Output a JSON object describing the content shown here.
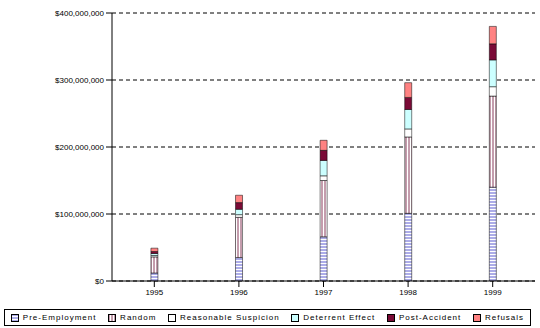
{
  "chart_data": {
    "type": "bar",
    "stacked": true,
    "grid": true,
    "legend": "bottom",
    "categories": [
      "1995",
      "1996",
      "1997",
      "1998",
      "1999"
    ],
    "ylim": [
      0,
      400000000
    ],
    "yticks": [
      {
        "value": 0,
        "label": "$0"
      },
      {
        "value": 100000000,
        "label": "$100,000,000"
      },
      {
        "value": 200000000,
        "label": "$200,000,000"
      },
      {
        "value": 300000000,
        "label": "$300,000,000"
      },
      {
        "value": 400000000,
        "label": "$400,000,000"
      }
    ],
    "series": [
      {
        "name": "Pre-Employment",
        "color": "#5a5ad2",
        "values": [
          12000000,
          35000000,
          66000000,
          101000000,
          140000000
        ]
      },
      {
        "name": "Random",
        "color": "#8a3a5a",
        "values": [
          24000000,
          60000000,
          84000000,
          114000000,
          136000000
        ]
      },
      {
        "name": "Reasonable Suspicion",
        "color": "#ffffff",
        "values": [
          2000000,
          4000000,
          7000000,
          12000000,
          14000000
        ]
      },
      {
        "name": "Deterrent Effect",
        "color": "#ccffff",
        "values": [
          3000000,
          8000000,
          23000000,
          29000000,
          40000000
        ]
      },
      {
        "name": "Post-Accident",
        "color": "#7a0a36",
        "values": [
          3000000,
          10000000,
          15000000,
          18000000,
          24000000
        ]
      },
      {
        "name": "Refusals",
        "color": "#ff8282",
        "values": [
          5000000,
          11000000,
          15000000,
          22000000,
          26000000
        ]
      }
    ]
  }
}
